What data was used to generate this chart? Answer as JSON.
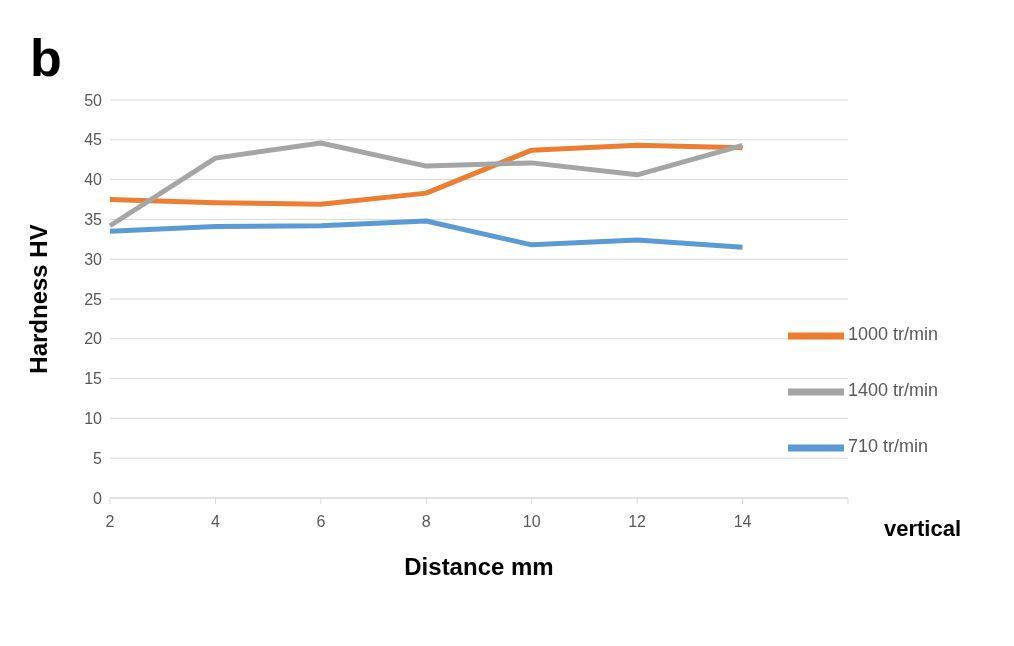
{
  "chart_data": {
    "type": "line",
    "title": "b",
    "xlabel": "Distance mm",
    "ylabel": "Hardness HV",
    "annotations": [
      "vertical"
    ],
    "categories": [
      "2",
      "4",
      "6",
      "8",
      "10",
      "12",
      "14",
      null
    ],
    "series": [
      {
        "name": "710 tr/min",
        "color": "#5b9bd5",
        "values": [
          33.5,
          34.1,
          34.2,
          34.8,
          31.8,
          32.4,
          31.5,
          null
        ]
      },
      {
        "name": "1000 tr/min",
        "color": "#ed7d31",
        "values": [
          37.5,
          37.1,
          36.9,
          38.3,
          43.7,
          44.3,
          44.0,
          null
        ]
      },
      {
        "name": "1400 tr/min",
        "color": "#a5a5a5",
        "values": [
          34.2,
          42.7,
          44.6,
          41.7,
          42.1,
          40.6,
          44.3,
          null
        ]
      }
    ],
    "ylim": [
      0,
      50
    ],
    "yticks": [
      0,
      5,
      10,
      15,
      20,
      25,
      30,
      35,
      40,
      45,
      50
    ],
    "grid": "y",
    "legend": "right",
    "marker": "none",
    "line_style": "solid"
  }
}
